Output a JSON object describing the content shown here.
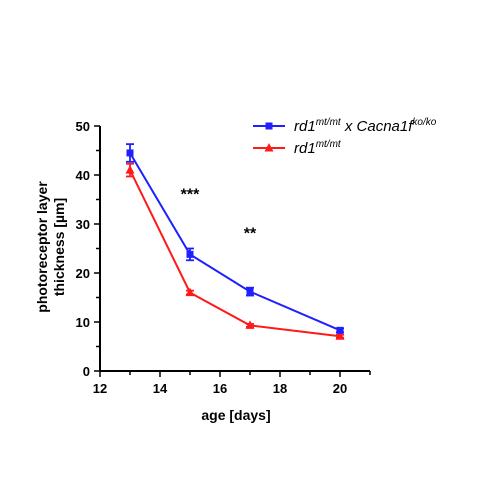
{
  "chart_data": {
    "type": "line",
    "xlabel": "age [days]",
    "ylabel_line1": "photoreceptor layer",
    "ylabel_line2": "thickness [µm]",
    "xlim": [
      12,
      21
    ],
    "ylim": [
      0,
      50
    ],
    "x_ticks": [
      12,
      14,
      16,
      18,
      20
    ],
    "y_ticks": [
      0,
      10,
      20,
      30,
      40,
      50
    ],
    "grid": false,
    "legend_position": "top-right",
    "series": [
      {
        "legend_base": "rd1",
        "legend_sup": "mt/mt",
        "legend_mid": " x Cacna1f",
        "legend_sup2": "ko/ko",
        "color": "#1f1fff",
        "marker": "square",
        "x": [
          13,
          15,
          17,
          20
        ],
        "y": [
          44.5,
          23.8,
          16.2,
          8.3
        ],
        "err": [
          1.8,
          1.2,
          0.8,
          0.4
        ]
      },
      {
        "legend_base": "rd1",
        "legend_sup": "mt/mt",
        "color": "#ff1a1a",
        "marker": "triangle",
        "x": [
          13,
          15,
          17,
          20
        ],
        "y": [
          41.0,
          16.0,
          9.3,
          7.1
        ],
        "err": [
          1.3,
          0.4,
          0.3,
          0.3
        ]
      }
    ],
    "annotations": [
      {
        "text": "***",
        "x": 15,
        "y": 35
      },
      {
        "text": "**",
        "x": 17,
        "y": 27
      }
    ]
  }
}
